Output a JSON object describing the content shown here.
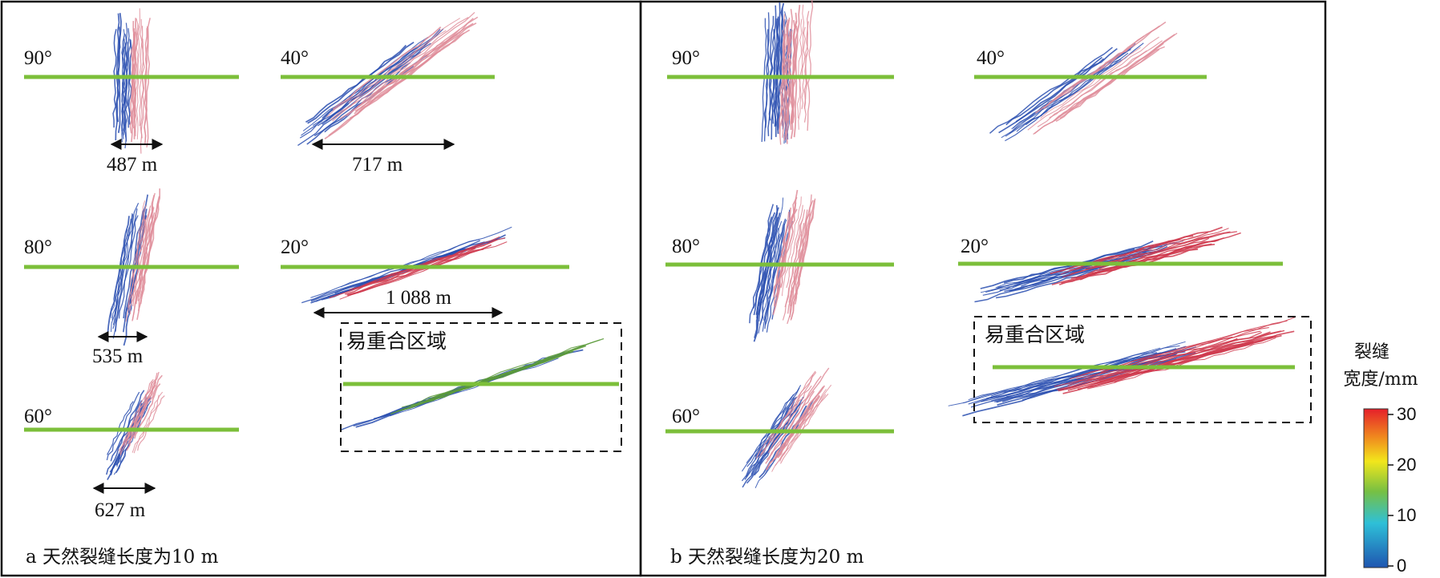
{
  "panel_a": {
    "caption": "a 天然裂缝长度为10 m",
    "angles": [
      "90°",
      "40°",
      "80°",
      "20°",
      "60°"
    ],
    "lengths": [
      "487 m",
      "717 m",
      "535 m",
      "1 088 m",
      "627 m"
    ],
    "overlap_label": "易重合区域"
  },
  "panel_b": {
    "caption": "b 天然裂缝长度为20 m",
    "angles": [
      "90°",
      "40°",
      "80°",
      "20°",
      "60°"
    ],
    "overlap_label": "易重合区域"
  },
  "legend": {
    "title_line1": "裂缝",
    "title_line2": "宽度/mm",
    "ticks": [
      "30",
      "20",
      "10",
      "0"
    ],
    "colors": [
      "#e5202a",
      "#f08a1e",
      "#f2e61c",
      "#77c043",
      "#2ec0d8",
      "#1f55b0"
    ]
  },
  "colors": {
    "wellbore": "#7cbf3a",
    "fracture_blue": "#2a4fb0",
    "fracture_red": "#cf3a4d",
    "fracture_pink": "#df8d9a",
    "fracture_green": "#5a9a3a"
  }
}
